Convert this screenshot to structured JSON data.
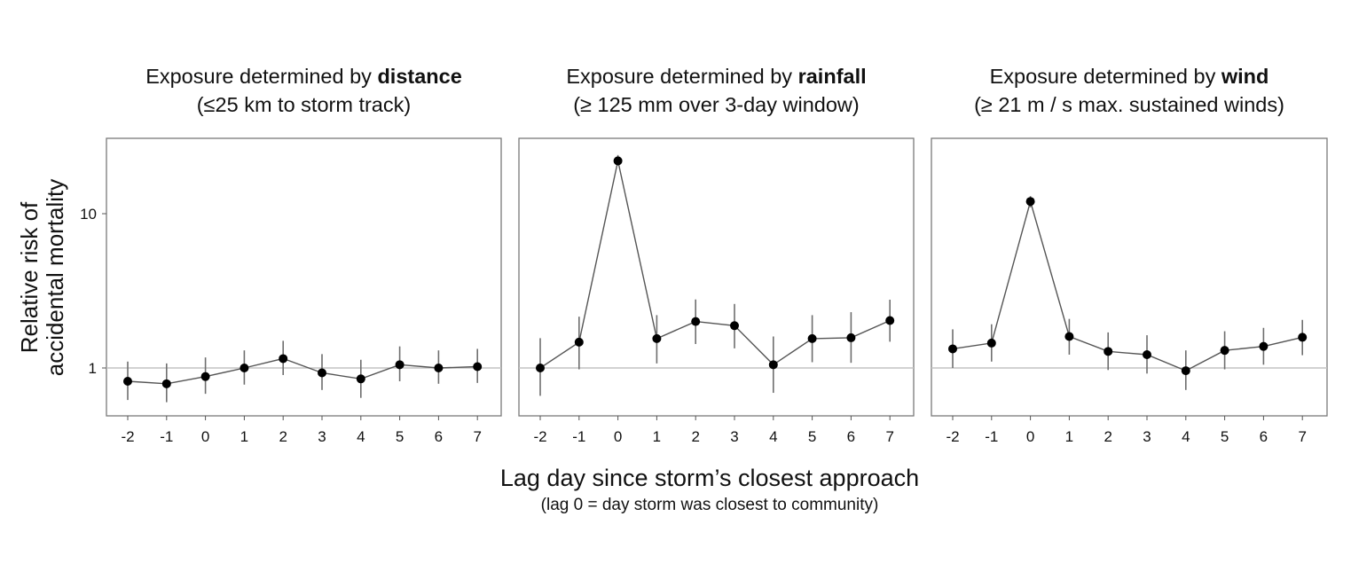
{
  "chart_data": {
    "type": "scatter",
    "y_scale": "log",
    "ylim": [
      0.5,
      30
    ],
    "y_ticks": [
      1,
      10
    ],
    "y_tick_labels": [
      "1",
      "10"
    ],
    "reference_line": 1,
    "ylabel_line1": "Relative risk of",
    "ylabel_line2": "accidental mortality",
    "xlabel": "Lag day since storm’s closest approach",
    "xlabel_note": "(lag 0 = day storm was closest to community)",
    "x": [
      -2,
      -1,
      0,
      1,
      2,
      3,
      4,
      5,
      6,
      7
    ],
    "x_tick_labels": [
      "-2",
      "-1",
      "0",
      "1",
      "2",
      "3",
      "4",
      "5",
      "6",
      "7"
    ],
    "panels": [
      {
        "title_prefix": "Exposure determined by ",
        "title_bold": "distance",
        "subtitle": "(≤25 km to storm track)",
        "values": [
          0.82,
          0.79,
          0.88,
          1.0,
          1.15,
          0.93,
          0.85,
          1.05,
          1.0,
          1.02
        ],
        "lower": [
          0.62,
          0.6,
          0.68,
          0.78,
          0.9,
          0.72,
          0.64,
          0.82,
          0.79,
          0.8
        ],
        "upper": [
          1.1,
          1.07,
          1.17,
          1.3,
          1.5,
          1.23,
          1.13,
          1.38,
          1.3,
          1.33
        ]
      },
      {
        "title_prefix": "Exposure determined by ",
        "title_bold": "rainfall",
        "subtitle": "(≥ 125 mm over 3-day window)",
        "values": [
          1.0,
          1.47,
          22.0,
          1.55,
          2.0,
          1.88,
          1.05,
          1.55,
          1.57,
          2.03
        ],
        "lower": [
          0.66,
          0.98,
          20.5,
          1.07,
          1.43,
          1.34,
          0.69,
          1.09,
          1.08,
          1.48
        ],
        "upper": [
          1.56,
          2.15,
          24.0,
          2.2,
          2.78,
          2.6,
          1.6,
          2.2,
          2.3,
          2.77
        ]
      },
      {
        "title_prefix": "Exposure determined by ",
        "title_bold": "wind",
        "subtitle": "(≥ 21 m / s max. sustained winds)",
        "values": [
          1.33,
          1.45,
          12.0,
          1.6,
          1.28,
          1.22,
          0.96,
          1.3,
          1.38,
          1.58
        ],
        "lower": [
          1.0,
          1.1,
          11.0,
          1.22,
          0.97,
          0.92,
          0.72,
          0.98,
          1.05,
          1.21
        ],
        "upper": [
          1.78,
          1.92,
          13.0,
          2.08,
          1.7,
          1.63,
          1.3,
          1.73,
          1.82,
          2.05
        ]
      }
    ]
  }
}
